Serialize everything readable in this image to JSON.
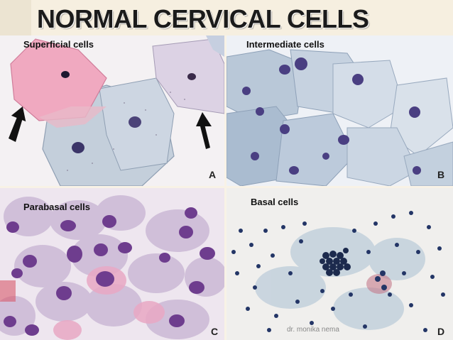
{
  "slide": {
    "title": "NORMAL CERVICAL CELLS",
    "credit": "dr. monika nema"
  },
  "panels": [
    {
      "label": "Superficial cells",
      "letter": "A"
    },
    {
      "label": "Intermediate cells",
      "letter": "B"
    },
    {
      "label": "Parabasal cells",
      "letter": "C"
    },
    {
      "label": "Basal cells",
      "letter": "D"
    }
  ],
  "colors": {
    "pink_cytoplasm": "#f0a9c0",
    "blue_cytoplasm": "#b9c8d8",
    "nucleus_dark": "#2e2458",
    "nucleus_purple": "#6e3d8e",
    "background_cream": "#f8f2e6"
  }
}
